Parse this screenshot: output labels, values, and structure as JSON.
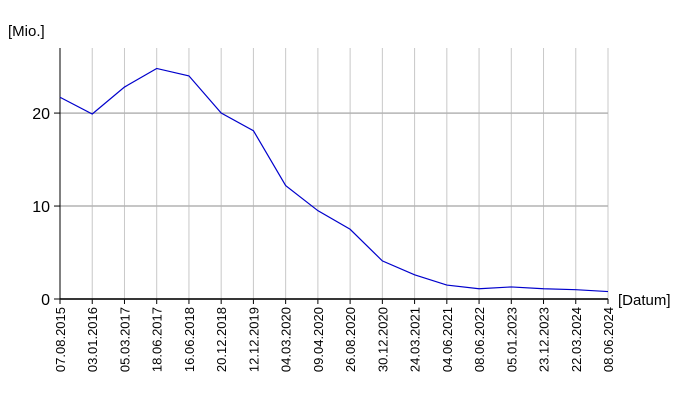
{
  "chart_data": {
    "type": "line",
    "y_label": "[Mio.]",
    "x_label": "[Datum]",
    "categories": [
      "07.08.2015",
      "03.01.2016",
      "05.03.2017",
      "18.06.2017",
      "16.06.2018",
      "20.12.2018",
      "12.12.2019",
      "04.03.2020",
      "09.04.2020",
      "26.08.2020",
      "30.12.2020",
      "24.03.2021",
      "04.06.2021",
      "08.06.2022",
      "05.01.2023",
      "23.12.2023",
      "22.03.2024",
      "08.06.2024"
    ],
    "series": [
      {
        "name": "Mio.",
        "color": "#0000cc",
        "values": [
          21.7,
          19.9,
          22.8,
          24.8,
          24.0,
          20.0,
          18.1,
          12.2,
          9.5,
          7.5,
          4.1,
          2.6,
          1.5,
          1.1,
          1.3,
          1.1,
          1.0,
          0.8
        ]
      }
    ],
    "ylim": [
      0,
      27
    ],
    "yticks": [
      0,
      10,
      20
    ],
    "grid": true
  }
}
